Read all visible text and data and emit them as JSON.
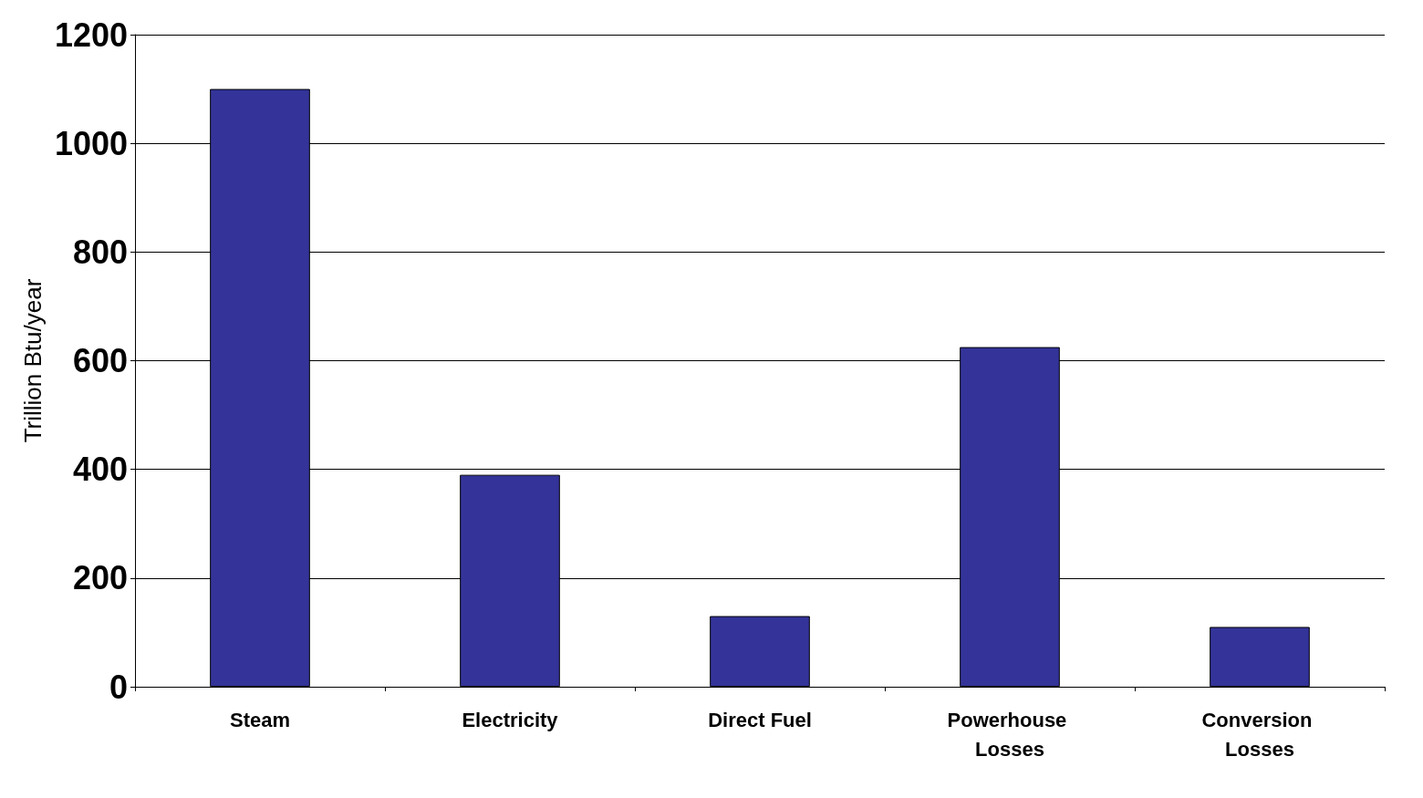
{
  "chart_data": {
    "type": "bar",
    "ylabel": "Trillion Btu/year",
    "categories": [
      "Steam",
      "Electricity",
      "Direct Fuel",
      "Powerhouse Losses",
      "Conversion Losses"
    ],
    "values": [
      1100,
      390,
      130,
      625,
      110
    ],
    "color": "#333399",
    "ylim": [
      0,
      1200
    ],
    "yticks": [
      0,
      200,
      400,
      600,
      800,
      1000,
      1200
    ],
    "grid": "y"
  }
}
